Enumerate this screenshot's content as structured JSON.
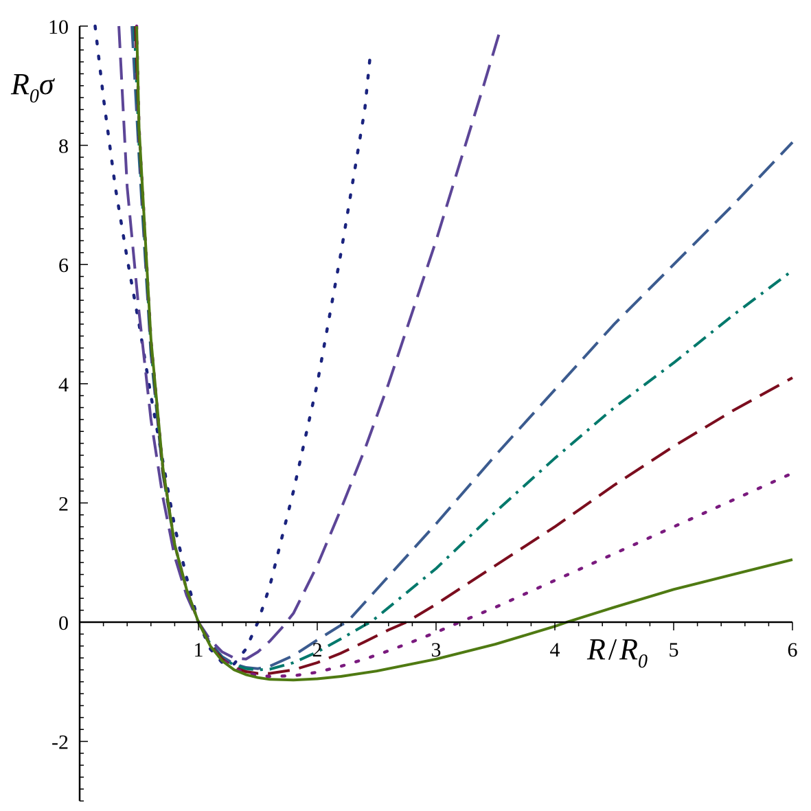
{
  "chart_data": {
    "type": "line",
    "xlim": [
      0,
      6
    ],
    "ylim": [
      -3,
      10
    ],
    "x_ticks": [
      "1",
      "2",
      "3",
      "4",
      "5",
      "6"
    ],
    "y_ticks": [
      "-2",
      "0",
      "2",
      "4",
      "6",
      "8",
      "10"
    ],
    "ylabel": {
      "main": "R",
      "sub": "0",
      "tail": "σ"
    },
    "xlabel": {
      "main": "R",
      "slash": "/",
      "main2": "R",
      "sub": "0"
    },
    "grid": false,
    "legend": "none",
    "series": [
      {
        "color": "#1a237e",
        "dash": "dotted",
        "points": [
          [
            0.13,
            10
          ],
          [
            0.2,
            8.8
          ],
          [
            0.3,
            7.3
          ],
          [
            0.4,
            6.1
          ],
          [
            0.5,
            5.0
          ],
          [
            0.6,
            3.8
          ],
          [
            0.7,
            2.7
          ],
          [
            0.8,
            1.6
          ],
          [
            0.9,
            0.75
          ],
          [
            1.0,
            0.0
          ],
          [
            1.1,
            -0.45
          ],
          [
            1.2,
            -0.68
          ],
          [
            1.3,
            -0.7
          ],
          [
            1.4,
            -0.45
          ],
          [
            1.5,
            0.0
          ],
          [
            1.6,
            0.6
          ],
          [
            1.8,
            2.2
          ],
          [
            2.0,
            4.0
          ],
          [
            2.2,
            6.2
          ],
          [
            2.4,
            8.6
          ],
          [
            2.45,
            9.6
          ]
        ]
      },
      {
        "color": "#5c4597",
        "dash": "long",
        "points": [
          [
            0.33,
            10
          ],
          [
            0.4,
            7.3
          ],
          [
            0.5,
            5.2
          ],
          [
            0.6,
            3.4
          ],
          [
            0.7,
            2.1
          ],
          [
            0.8,
            1.1
          ],
          [
            0.9,
            0.45
          ],
          [
            1.0,
            0.0
          ],
          [
            1.1,
            -0.3
          ],
          [
            1.2,
            -0.5
          ],
          [
            1.3,
            -0.6
          ],
          [
            1.4,
            -0.62
          ],
          [
            1.5,
            -0.5
          ],
          [
            1.6,
            -0.32
          ],
          [
            1.7,
            -0.1
          ],
          [
            1.8,
            0.15
          ],
          [
            2.0,
            0.95
          ],
          [
            2.2,
            1.9
          ],
          [
            2.4,
            2.9
          ],
          [
            2.6,
            4.0
          ],
          [
            2.8,
            5.2
          ],
          [
            3.0,
            6.4
          ],
          [
            3.2,
            7.7
          ],
          [
            3.4,
            9.0
          ],
          [
            3.55,
            10
          ]
        ]
      },
      {
        "color": "#3b5b8f",
        "dash": "long",
        "points": [
          [
            0.44,
            10
          ],
          [
            0.5,
            7.8
          ],
          [
            0.6,
            4.5
          ],
          [
            0.7,
            2.5
          ],
          [
            0.8,
            1.3
          ],
          [
            0.9,
            0.55
          ],
          [
            1.0,
            0.0
          ],
          [
            1.1,
            -0.35
          ],
          [
            1.2,
            -0.58
          ],
          [
            1.3,
            -0.7
          ],
          [
            1.4,
            -0.76
          ],
          [
            1.5,
            -0.78
          ],
          [
            1.6,
            -0.74
          ],
          [
            1.8,
            -0.56
          ],
          [
            2.0,
            -0.3
          ],
          [
            2.2,
            -0.05
          ],
          [
            2.25,
            0.0
          ],
          [
            2.5,
            0.55
          ],
          [
            3.0,
            1.65
          ],
          [
            3.5,
            2.8
          ],
          [
            4.0,
            3.9
          ],
          [
            4.5,
            5.0
          ],
          [
            5.0,
            6.0
          ],
          [
            5.5,
            7.0
          ],
          [
            6.0,
            8.05
          ]
        ]
      },
      {
        "color": "#00786b",
        "dash": "dashdot",
        "points": [
          [
            0.46,
            10
          ],
          [
            0.5,
            8.0
          ],
          [
            0.6,
            4.6
          ],
          [
            0.7,
            2.5
          ],
          [
            0.8,
            1.3
          ],
          [
            0.9,
            0.55
          ],
          [
            1.0,
            0.0
          ],
          [
            1.1,
            -0.37
          ],
          [
            1.2,
            -0.6
          ],
          [
            1.3,
            -0.72
          ],
          [
            1.4,
            -0.78
          ],
          [
            1.5,
            -0.8
          ],
          [
            1.6,
            -0.79
          ],
          [
            1.8,
            -0.68
          ],
          [
            2.0,
            -0.5
          ],
          [
            2.2,
            -0.28
          ],
          [
            2.4,
            -0.05
          ],
          [
            2.45,
            0.0
          ],
          [
            3.0,
            0.9
          ],
          [
            3.5,
            1.85
          ],
          [
            4.0,
            2.75
          ],
          [
            4.5,
            3.6
          ],
          [
            5.0,
            4.35
          ],
          [
            5.5,
            5.15
          ],
          [
            6.0,
            5.9
          ]
        ]
      },
      {
        "color": "#7b0d1e",
        "dash": "long",
        "points": [
          [
            0.47,
            10
          ],
          [
            0.5,
            8.2
          ],
          [
            0.6,
            4.7
          ],
          [
            0.7,
            2.55
          ],
          [
            0.8,
            1.3
          ],
          [
            0.9,
            0.55
          ],
          [
            1.0,
            0.0
          ],
          [
            1.1,
            -0.38
          ],
          [
            1.2,
            -0.62
          ],
          [
            1.3,
            -0.76
          ],
          [
            1.4,
            -0.83
          ],
          [
            1.5,
            -0.86
          ],
          [
            1.6,
            -0.86
          ],
          [
            1.8,
            -0.8
          ],
          [
            2.0,
            -0.68
          ],
          [
            2.2,
            -0.52
          ],
          [
            2.4,
            -0.33
          ],
          [
            2.6,
            -0.13
          ],
          [
            2.75,
            0.0
          ],
          [
            3.0,
            0.3
          ],
          [
            3.5,
            0.95
          ],
          [
            4.0,
            1.6
          ],
          [
            4.5,
            2.3
          ],
          [
            5.0,
            2.95
          ],
          [
            5.5,
            3.55
          ],
          [
            6.0,
            4.1
          ]
        ]
      },
      {
        "color": "#7a1a7e",
        "dash": "dotted",
        "points": [
          [
            0.48,
            10
          ],
          [
            0.5,
            8.3
          ],
          [
            0.6,
            4.75
          ],
          [
            0.7,
            2.6
          ],
          [
            0.8,
            1.3
          ],
          [
            0.9,
            0.55
          ],
          [
            1.0,
            0.0
          ],
          [
            1.1,
            -0.39
          ],
          [
            1.2,
            -0.63
          ],
          [
            1.3,
            -0.78
          ],
          [
            1.4,
            -0.85
          ],
          [
            1.5,
            -0.89
          ],
          [
            1.6,
            -0.91
          ],
          [
            1.8,
            -0.9
          ],
          [
            2.0,
            -0.84
          ],
          [
            2.2,
            -0.74
          ],
          [
            2.4,
            -0.62
          ],
          [
            2.6,
            -0.48
          ],
          [
            2.8,
            -0.33
          ],
          [
            3.0,
            -0.17
          ],
          [
            3.2,
            0.0
          ],
          [
            3.5,
            0.25
          ],
          [
            4.0,
            0.7
          ],
          [
            4.5,
            1.15
          ],
          [
            5.0,
            1.6
          ],
          [
            5.5,
            2.05
          ],
          [
            6.0,
            2.5
          ]
        ]
      },
      {
        "color": "#4f7a12",
        "dash": "solid",
        "points": [
          [
            0.48,
            10
          ],
          [
            0.5,
            8.3
          ],
          [
            0.6,
            4.75
          ],
          [
            0.7,
            2.6
          ],
          [
            0.8,
            1.3
          ],
          [
            0.9,
            0.55
          ],
          [
            1.0,
            0.0
          ],
          [
            1.1,
            -0.4
          ],
          [
            1.2,
            -0.65
          ],
          [
            1.3,
            -0.8
          ],
          [
            1.4,
            -0.88
          ],
          [
            1.5,
            -0.93
          ],
          [
            1.6,
            -0.96
          ],
          [
            1.8,
            -0.97
          ],
          [
            2.0,
            -0.95
          ],
          [
            2.2,
            -0.91
          ],
          [
            2.5,
            -0.82
          ],
          [
            3.0,
            -0.62
          ],
          [
            3.5,
            -0.37
          ],
          [
            4.0,
            -0.07
          ],
          [
            4.1,
            0.0
          ],
          [
            4.5,
            0.25
          ],
          [
            5.0,
            0.55
          ],
          [
            5.5,
            0.8
          ],
          [
            6.0,
            1.05
          ]
        ]
      }
    ]
  }
}
